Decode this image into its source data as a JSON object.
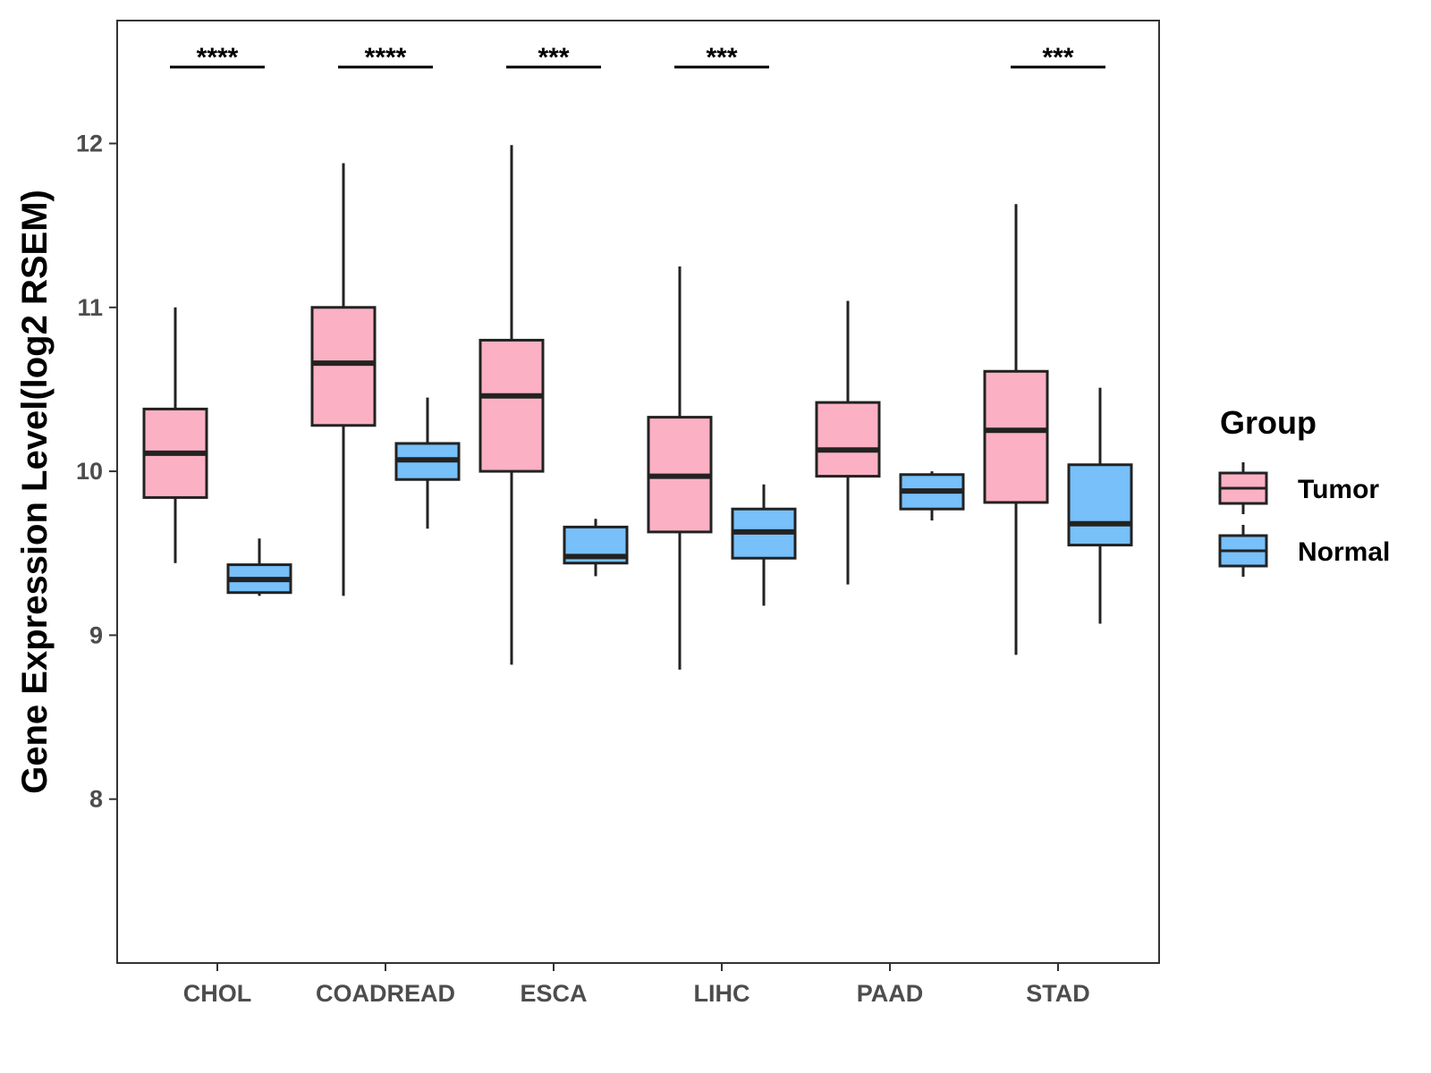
{
  "chart_data": {
    "type": "boxplot",
    "title": "",
    "xlabel": "",
    "ylabel": "Gene Expression Level(log2 RSEM)",
    "ylim": [
      7.0,
      12.75
    ],
    "yticks": [
      8,
      9,
      10,
      11,
      12
    ],
    "grid": false,
    "legend": {
      "title": "Group",
      "position": "right"
    },
    "categories": [
      "CHOL",
      "COADREAD",
      "ESCA",
      "LIHC",
      "PAAD",
      "STAD"
    ],
    "series": [
      {
        "name": "Tumor",
        "color": "#fbb1c3",
        "boxes": [
          {
            "whisker_low": 9.44,
            "q1": 9.84,
            "median": 10.11,
            "q3": 10.38,
            "whisker_high": 11.0
          },
          {
            "whisker_low": 9.24,
            "q1": 10.28,
            "median": 10.66,
            "q3": 11.0,
            "whisker_high": 11.88
          },
          {
            "whisker_low": 8.82,
            "q1": 10.0,
            "median": 10.46,
            "q3": 10.8,
            "whisker_high": 11.99
          },
          {
            "whisker_low": 8.79,
            "q1": 9.63,
            "median": 9.97,
            "q3": 10.33,
            "whisker_high": 11.25
          },
          {
            "whisker_low": 9.31,
            "q1": 9.97,
            "median": 10.13,
            "q3": 10.42,
            "whisker_high": 11.04
          },
          {
            "whisker_low": 8.88,
            "q1": 9.81,
            "median": 10.25,
            "q3": 10.61,
            "whisker_high": 11.63
          }
        ]
      },
      {
        "name": "Normal",
        "color": "#77c0f9",
        "boxes": [
          {
            "whisker_low": 9.24,
            "q1": 9.26,
            "median": 9.34,
            "q3": 9.43,
            "whisker_high": 9.59
          },
          {
            "whisker_low": 9.65,
            "q1": 9.95,
            "median": 10.07,
            "q3": 10.17,
            "whisker_high": 10.45
          },
          {
            "whisker_low": 9.36,
            "q1": 9.44,
            "median": 9.48,
            "q3": 9.66,
            "whisker_high": 9.71
          },
          {
            "whisker_low": 9.18,
            "q1": 9.47,
            "median": 9.63,
            "q3": 9.77,
            "whisker_high": 9.92
          },
          {
            "whisker_low": 9.7,
            "q1": 9.77,
            "median": 9.88,
            "q3": 9.98,
            "whisker_high": 10.0
          },
          {
            "whisker_low": 9.07,
            "q1": 9.55,
            "median": 9.68,
            "q3": 10.04,
            "whisker_high": 10.51
          }
        ]
      }
    ],
    "significance": [
      {
        "category": "CHOL",
        "label": "****"
      },
      {
        "category": "COADREAD",
        "label": "****"
      },
      {
        "category": "ESCA",
        "label": "***"
      },
      {
        "category": "LIHC",
        "label": "***"
      },
      {
        "category": "PAAD",
        "label": ""
      },
      {
        "category": "STAD",
        "label": "***"
      }
    ]
  }
}
